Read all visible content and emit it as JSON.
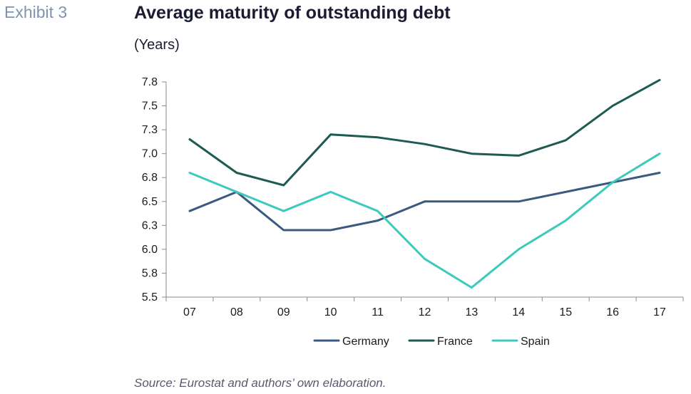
{
  "header": {
    "exhibit": "Exhibit 3",
    "title": "Average maturity of outstanding debt",
    "subtitle": "(Years)"
  },
  "source": "Source: Eurostat and authors’ own elaboration.",
  "chart_data": {
    "type": "line",
    "categories": [
      "07",
      "08",
      "09",
      "10",
      "11",
      "12",
      "13",
      "14",
      "15",
      "16",
      "17"
    ],
    "y_ticks": [
      "5.5",
      "5.8",
      "6.0",
      "6.3",
      "6.5",
      "6.8",
      "7.0",
      "7.3",
      "7.5",
      "7.8"
    ],
    "ylim": [
      5.5,
      7.75
    ],
    "grid": false,
    "legend_position": "bottom",
    "series": [
      {
        "name": "Germany",
        "color": "#3b5a80",
        "values": [
          6.4,
          6.6,
          6.2,
          6.2,
          6.3,
          6.5,
          6.5,
          6.5,
          6.6,
          6.7,
          6.8
        ]
      },
      {
        "name": "France",
        "color": "#1d5a52",
        "values": [
          7.15,
          6.8,
          6.67,
          7.2,
          7.17,
          7.1,
          7.0,
          6.98,
          7.14,
          7.5,
          7.77
        ]
      },
      {
        "name": "Spain",
        "color": "#3ec9bd",
        "values": [
          6.8,
          6.6,
          6.4,
          6.6,
          6.4,
          5.9,
          5.6,
          6.0,
          6.3,
          6.7,
          7.0
        ]
      }
    ]
  }
}
